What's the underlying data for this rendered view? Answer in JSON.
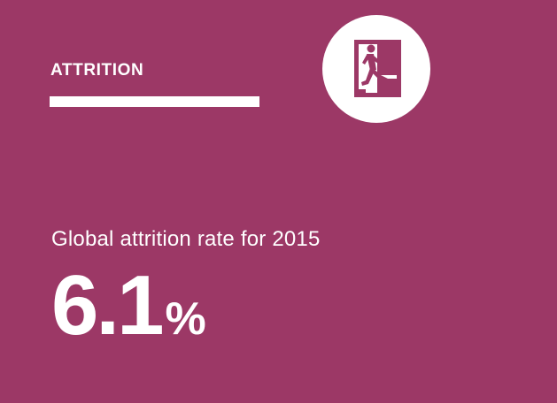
{
  "section": {
    "title": "ATTRITION",
    "icon": "emergency-exit-icon"
  },
  "stat": {
    "caption": "Global attrition rate for 2015",
    "value": "6.1",
    "unit": "%"
  },
  "colors": {
    "background": "#9c3866",
    "foreground": "#ffffff"
  }
}
